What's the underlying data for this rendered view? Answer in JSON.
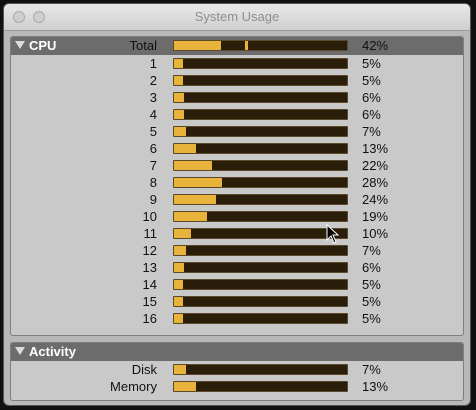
{
  "window": {
    "title": "System Usage"
  },
  "cpu": {
    "section_label": "CPU",
    "total": {
      "label": "Total",
      "percent_text": "42%",
      "fill": 0.27,
      "peak": 0.42
    },
    "cores": [
      {
        "label": "1",
        "percent_text": "5%",
        "fill": 0.05
      },
      {
        "label": "2",
        "percent_text": "5%",
        "fill": 0.05
      },
      {
        "label": "3",
        "percent_text": "6%",
        "fill": 0.06
      },
      {
        "label": "4",
        "percent_text": "6%",
        "fill": 0.06
      },
      {
        "label": "5",
        "percent_text": "7%",
        "fill": 0.07
      },
      {
        "label": "6",
        "percent_text": "13%",
        "fill": 0.13
      },
      {
        "label": "7",
        "percent_text": "22%",
        "fill": 0.22
      },
      {
        "label": "8",
        "percent_text": "28%",
        "fill": 0.28
      },
      {
        "label": "9",
        "percent_text": "24%",
        "fill": 0.24
      },
      {
        "label": "10",
        "percent_text": "19%",
        "fill": 0.19
      },
      {
        "label": "11",
        "percent_text": "10%",
        "fill": 0.1
      },
      {
        "label": "12",
        "percent_text": "7%",
        "fill": 0.07
      },
      {
        "label": "13",
        "percent_text": "6%",
        "fill": 0.06
      },
      {
        "label": "14",
        "percent_text": "5%",
        "fill": 0.05
      },
      {
        "label": "15",
        "percent_text": "5%",
        "fill": 0.05
      },
      {
        "label": "16",
        "percent_text": "5%",
        "fill": 0.05
      }
    ]
  },
  "activity": {
    "section_label": "Activity",
    "items": [
      {
        "label": "Disk",
        "percent_text": "7%",
        "fill": 0.07
      },
      {
        "label": "Memory",
        "percent_text": "13%",
        "fill": 0.13
      }
    ]
  },
  "colors": {
    "bar_fill": "#e8b33a",
    "bar_track": "#2a1d0a",
    "section_header": "#6c6c6c"
  },
  "icons": {
    "collapse": "disclosure-triangle-icon",
    "pointer": "mouse-pointer-icon"
  }
}
